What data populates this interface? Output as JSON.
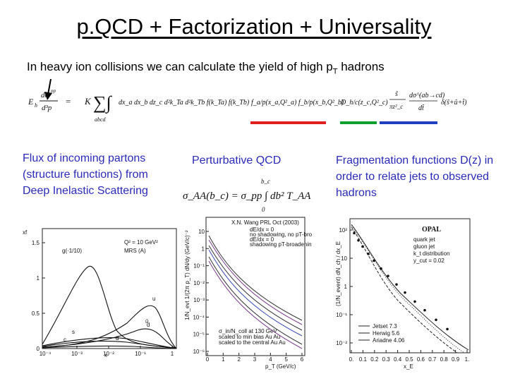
{
  "slide": {
    "title": "p.QCD + Factorization + Universality",
    "subtitle_main": "In heavy ion collisions we can calculate the yield of high p",
    "subtitle_sub": "T",
    "subtitle_end": " hadrons"
  },
  "formula": {
    "lhs": "E_h dσ^pp_h / d³p",
    "equals": "=",
    "K": "K",
    "integral_limits": "abcd",
    "kernel": "dx_a dx_b dz_c d²k_Ta d²k_Tb f(k_Ta) f(k_Tb) f_a/p(x_a,Q²_a) f_b/p(x_b,Q²_b)",
    "frag": "D_h/c(z_c,Q²_c)",
    "xsec": "ŝ/(π z²_c) dσ^(ab→cd)/dt̂ δ(ŝ+û+t̂)"
  },
  "columns": {
    "flux": "Flux of incoming partons (structure functions) from Deep Inelastic Scattering",
    "pert": "Perturbative QCD",
    "frag": "Fragmentation functions D(z) in order to relate jets to observed hadrons"
  },
  "underline_colors": {
    "pdf": "#e02020",
    "frag": "#10a030",
    "xsec": "#2040c0"
  },
  "plot_left": {
    "ylabel": "xf",
    "xlabel": "x",
    "legend1": "Q² = 10 GeV²",
    "legend2": "MRS (A)",
    "curve_labels": [
      "g(·1/10)",
      "u",
      "d",
      "ū",
      "s",
      "c",
      "d̄"
    ],
    "yticks": [
      "0",
      "0.5",
      "1",
      "1.5"
    ],
    "xticks": [
      "10⁻⁴",
      "10⁻³",
      "10⁻²",
      "10⁻¹",
      "1"
    ]
  },
  "plot_mid": {
    "formula": "σ_AA(b_c) = σ_pp ∫ db² T_AA",
    "formula_top": "b_c",
    "formula_bottom": "0",
    "header": "X.N. Wang PRL Oct (2003)",
    "ylabel": "1/N_evt 1/(2π p_T) dN/dy (GeV/c)⁻²",
    "xlabel": "p_T (GeV/c)",
    "xticks": [
      "0",
      "1",
      "2",
      "3",
      "4",
      "5",
      "6"
    ],
    "yticks": [
      "10",
      "1",
      "10⁻¹",
      "10⁻²",
      "10⁻³",
      "10⁻⁴",
      "10⁻⁵",
      "10⁻⁶"
    ],
    "legend_top": [
      "dE/dx = 0",
      "no shadowing, no pT-broadening",
      "dE/dx = 0",
      "shadowing pT-broadening"
    ],
    "legend_bottom": [
      "σ_in/N_coll at 130 GeV",
      "scaled to min bias Au Au",
      "scaled to the central Au Au"
    ]
  },
  "plot_right": {
    "header": "OPAL",
    "legend": [
      "quark jet",
      "gluon jet",
      "k_t distribution",
      "y_cut = 0.02"
    ],
    "legend_lines": [
      "Jetset 7.3",
      "Herwig 5.6",
      "Ariadne 4.06"
    ],
    "ylabel": "(1/N_event) dN_ch / dx_E",
    "xlabel": "x_E",
    "yticks": [
      "10²",
      "10",
      "1",
      "10⁻¹",
      "10⁻²"
    ],
    "xticks": [
      "0.",
      "0.1",
      "0.2",
      "0.3",
      "0.4",
      "0.5",
      "0.6",
      "0.7",
      "0.8",
      "0.9",
      "1."
    ]
  }
}
